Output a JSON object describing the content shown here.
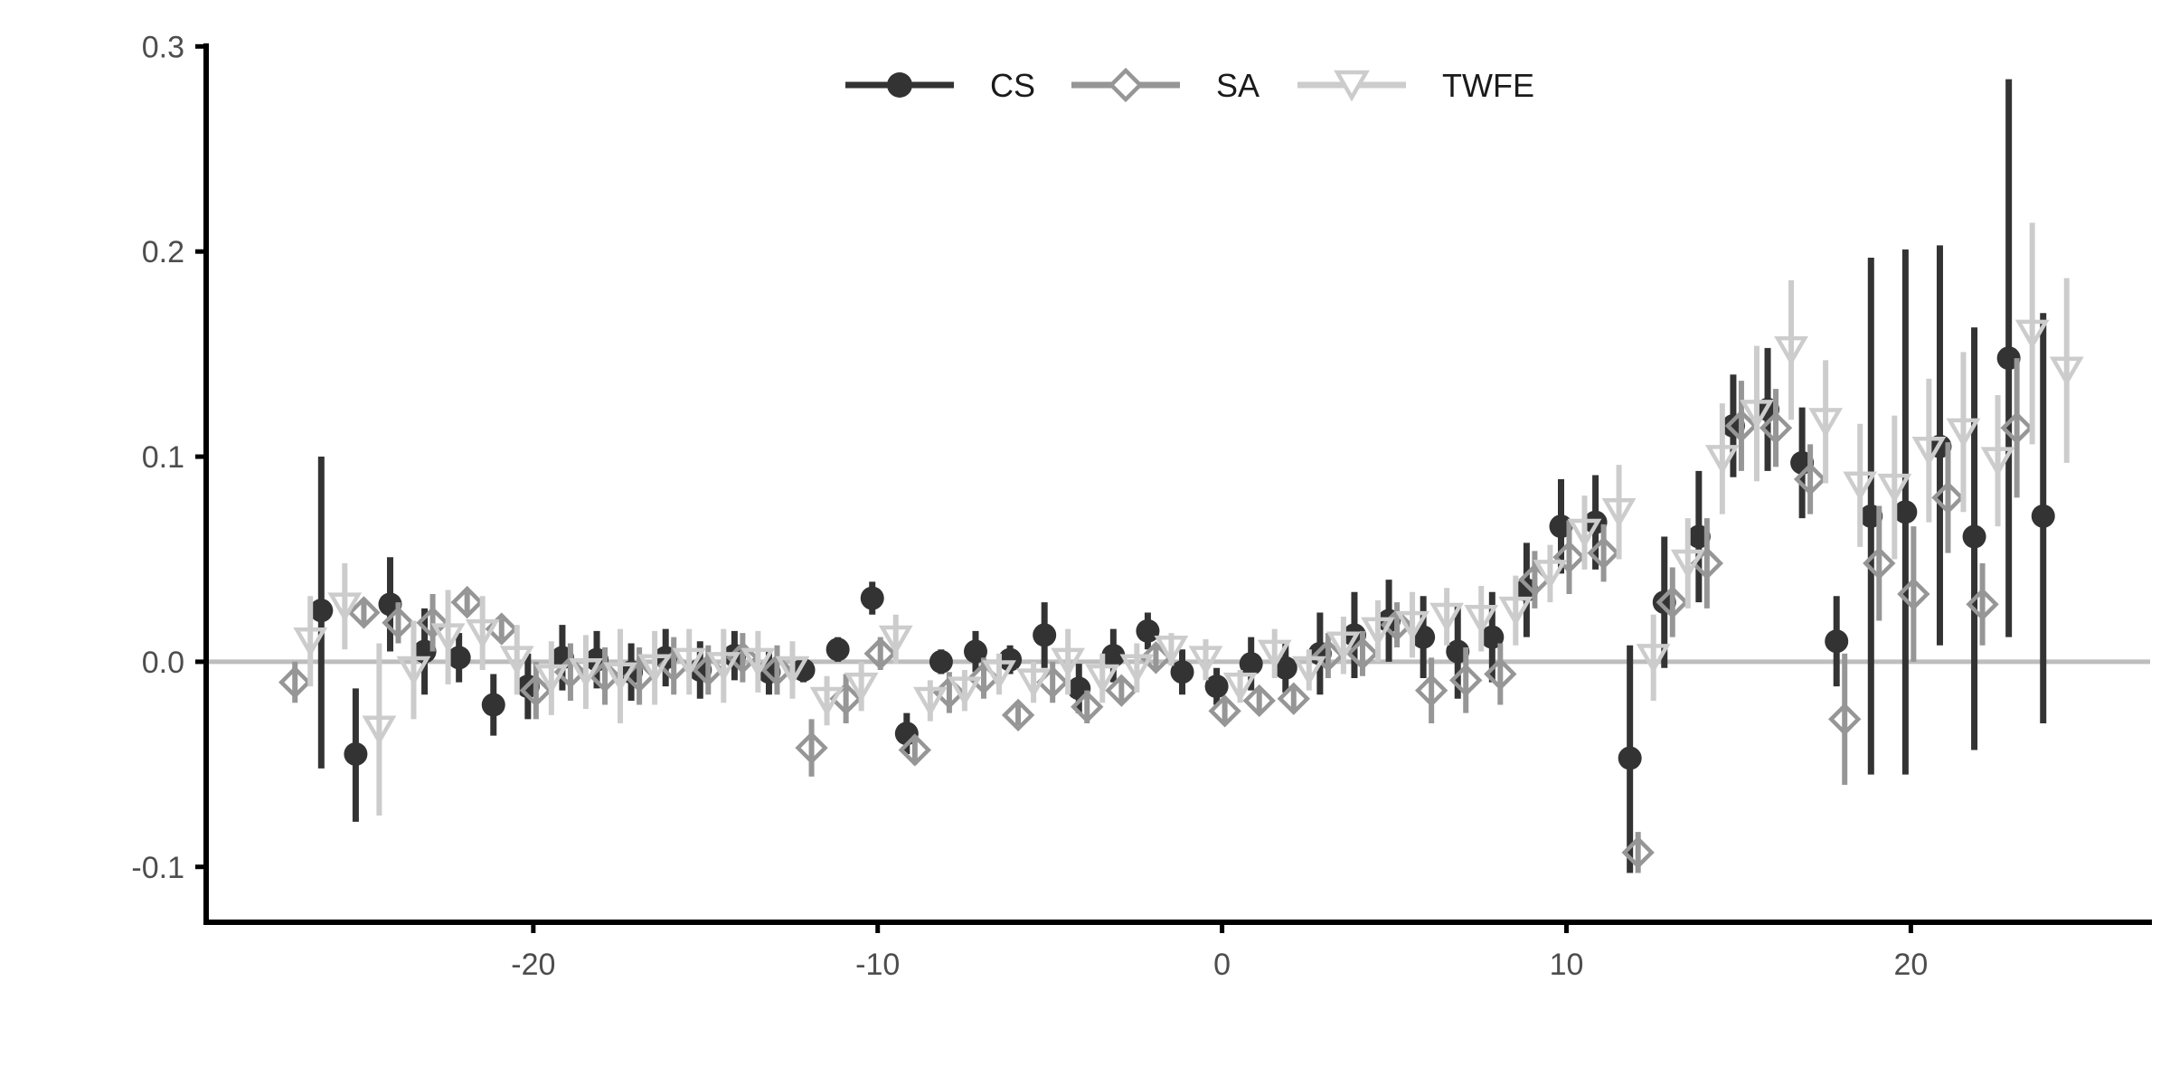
{
  "chart_data": {
    "type": "scatter",
    "title": "",
    "xlabel": "",
    "ylabel": "",
    "xlim": [
      -29.5,
      27
    ],
    "ylim": [
      -0.127,
      0.305
    ],
    "xticks": [
      -20,
      -10,
      0,
      10,
      20
    ],
    "yticks": [
      -0.1,
      0.0,
      0.1,
      0.2,
      0.3
    ],
    "xtick_labels": [
      "-20",
      "-10",
      "0",
      "10",
      "20"
    ],
    "ytick_labels": [
      "-0.1",
      "0.0",
      "0.1",
      "0.2",
      "0.3"
    ],
    "reference_line_y": 0,
    "grid": false,
    "legend_position": "top-center",
    "series": [
      {
        "name": "CS",
        "color": "#333333",
        "marker": "filled-circle",
        "points": [
          {
            "x": -26,
            "y": 0.025,
            "lo": -0.052,
            "hi": 0.1
          },
          {
            "x": -25,
            "y": -0.045,
            "lo": -0.078,
            "hi": -0.013
          },
          {
            "x": -24,
            "y": 0.028,
            "lo": 0.005,
            "hi": 0.051
          },
          {
            "x": -23,
            "y": 0.005,
            "lo": -0.016,
            "hi": 0.026
          },
          {
            "x": -22,
            "y": 0.002,
            "lo": -0.01,
            "hi": 0.014
          },
          {
            "x": -21,
            "y": -0.021,
            "lo": -0.036,
            "hi": -0.006
          },
          {
            "x": -20,
            "y": -0.012,
            "lo": -0.028,
            "hi": 0.004
          },
          {
            "x": -19,
            "y": 0.002,
            "lo": -0.014,
            "hi": 0.018
          },
          {
            "x": -18,
            "y": 0.001,
            "lo": -0.013,
            "hi": 0.015
          },
          {
            "x": -17,
            "y": -0.005,
            "lo": -0.019,
            "hi": 0.009
          },
          {
            "x": -16,
            "y": 0.002,
            "lo": -0.012,
            "hi": 0.016
          },
          {
            "x": -15,
            "y": -0.004,
            "lo": -0.018,
            "hi": 0.01
          },
          {
            "x": -14,
            "y": 0.003,
            "lo": -0.009,
            "hi": 0.015
          },
          {
            "x": -13,
            "y": -0.005,
            "lo": -0.016,
            "hi": 0.006
          },
          {
            "x": -12,
            "y": -0.004,
            "lo": -0.01,
            "hi": 0.002
          },
          {
            "x": -11,
            "y": 0.006,
            "lo": 0.0,
            "hi": 0.012
          },
          {
            "x": -10,
            "y": 0.031,
            "lo": 0.023,
            "hi": 0.039
          },
          {
            "x": -9,
            "y": -0.035,
            "lo": -0.045,
            "hi": -0.025
          },
          {
            "x": -8,
            "y": 0.0,
            "lo": -0.006,
            "hi": 0.006
          },
          {
            "x": -7,
            "y": 0.005,
            "lo": -0.005,
            "hi": 0.015
          },
          {
            "x": -6,
            "y": 0.001,
            "lo": -0.006,
            "hi": 0.008
          },
          {
            "x": -5,
            "y": 0.013,
            "lo": -0.003,
            "hi": 0.029
          },
          {
            "x": -4,
            "y": -0.013,
            "lo": -0.025,
            "hi": -0.001
          },
          {
            "x": -3,
            "y": 0.003,
            "lo": -0.01,
            "hi": 0.016
          },
          {
            "x": -2,
            "y": 0.015,
            "lo": 0.006,
            "hi": 0.024
          },
          {
            "x": -1,
            "y": -0.005,
            "lo": -0.016,
            "hi": 0.006
          },
          {
            "x": 0,
            "y": -0.012,
            "lo": -0.021,
            "hi": -0.003
          },
          {
            "x": 1,
            "y": -0.001,
            "lo": -0.014,
            "hi": 0.012
          },
          {
            "x": 2,
            "y": -0.003,
            "lo": -0.015,
            "hi": 0.009
          },
          {
            "x": 3,
            "y": 0.004,
            "lo": -0.016,
            "hi": 0.024
          },
          {
            "x": 4,
            "y": 0.013,
            "lo": -0.008,
            "hi": 0.034
          },
          {
            "x": 5,
            "y": 0.02,
            "lo": 0.0,
            "hi": 0.04
          },
          {
            "x": 6,
            "y": 0.012,
            "lo": -0.008,
            "hi": 0.032
          },
          {
            "x": 7,
            "y": 0.005,
            "lo": -0.018,
            "hi": 0.028
          },
          {
            "x": 8,
            "y": 0.012,
            "lo": -0.01,
            "hi": 0.034
          },
          {
            "x": 9,
            "y": 0.035,
            "lo": 0.012,
            "hi": 0.058
          },
          {
            "x": 10,
            "y": 0.066,
            "lo": 0.043,
            "hi": 0.089
          },
          {
            "x": 11,
            "y": 0.068,
            "lo": 0.045,
            "hi": 0.091
          },
          {
            "x": 12,
            "y": -0.047,
            "lo": -0.103,
            "hi": 0.008
          },
          {
            "x": 13,
            "y": 0.029,
            "lo": -0.003,
            "hi": 0.061
          },
          {
            "x": 14,
            "y": 0.061,
            "lo": 0.029,
            "hi": 0.093
          },
          {
            "x": 15,
            "y": 0.115,
            "lo": 0.09,
            "hi": 0.14
          },
          {
            "x": 16,
            "y": 0.123,
            "lo": 0.093,
            "hi": 0.153
          },
          {
            "x": 17,
            "y": 0.097,
            "lo": 0.07,
            "hi": 0.124
          },
          {
            "x": 18,
            "y": 0.01,
            "lo": -0.012,
            "hi": 0.032
          },
          {
            "x": 19,
            "y": 0.071,
            "lo": -0.055,
            "hi": 0.197
          },
          {
            "x": 20,
            "y": 0.073,
            "lo": -0.055,
            "hi": 0.201
          },
          {
            "x": 21,
            "y": 0.105,
            "lo": 0.008,
            "hi": 0.203
          },
          {
            "x": 22,
            "y": 0.061,
            "lo": -0.043,
            "hi": 0.163
          },
          {
            "x": 23,
            "y": 0.148,
            "lo": 0.012,
            "hi": 0.284
          },
          {
            "x": 24,
            "y": 0.071,
            "lo": -0.03,
            "hi": 0.17
          }
        ]
      },
      {
        "name": "SA",
        "color": "#969696",
        "marker": "open-diamond",
        "points": [
          {
            "x": -27,
            "y": -0.01,
            "lo": -0.02,
            "hi": 0.0
          },
          {
            "x": -25,
            "y": 0.024,
            "lo": 0.018,
            "hi": 0.03
          },
          {
            "x": -24,
            "y": 0.019,
            "lo": 0.009,
            "hi": 0.029
          },
          {
            "x": -23,
            "y": 0.019,
            "lo": 0.005,
            "hi": 0.033
          },
          {
            "x": -22,
            "y": 0.029,
            "lo": 0.024,
            "hi": 0.034
          },
          {
            "x": -21,
            "y": 0.016,
            "lo": 0.011,
            "hi": 0.021
          },
          {
            "x": -20,
            "y": -0.014,
            "lo": -0.028,
            "hi": 0.0
          },
          {
            "x": -19,
            "y": -0.005,
            "lo": -0.019,
            "hi": 0.009
          },
          {
            "x": -18,
            "y": -0.007,
            "lo": -0.021,
            "hi": 0.007
          },
          {
            "x": -17,
            "y": -0.007,
            "lo": -0.021,
            "hi": 0.007
          },
          {
            "x": -16,
            "y": -0.002,
            "lo": -0.016,
            "hi": 0.012
          },
          {
            "x": -15,
            "y": -0.004,
            "lo": -0.016,
            "hi": 0.008
          },
          {
            "x": -14,
            "y": 0.002,
            "lo": -0.01,
            "hi": 0.014
          },
          {
            "x": -13,
            "y": -0.004,
            "lo": -0.016,
            "hi": 0.008
          },
          {
            "x": -12,
            "y": -0.042,
            "lo": -0.056,
            "hi": -0.028
          },
          {
            "x": -11,
            "y": -0.018,
            "lo": -0.03,
            "hi": -0.006
          },
          {
            "x": -10,
            "y": 0.004,
            "lo": -0.004,
            "hi": 0.012
          },
          {
            "x": -9,
            "y": -0.043,
            "lo": -0.05,
            "hi": -0.036
          },
          {
            "x": -8,
            "y": -0.015,
            "lo": -0.025,
            "hi": -0.005
          },
          {
            "x": -7,
            "y": -0.008,
            "lo": -0.018,
            "hi": 0.002
          },
          {
            "x": -6,
            "y": -0.026,
            "lo": -0.031,
            "hi": -0.021
          },
          {
            "x": -5,
            "y": -0.01,
            "lo": -0.02,
            "hi": 0.0
          },
          {
            "x": -4,
            "y": -0.022,
            "lo": -0.03,
            "hi": -0.014
          },
          {
            "x": -3,
            "y": -0.014,
            "lo": -0.02,
            "hi": -0.008
          },
          {
            "x": -2,
            "y": 0.002,
            "lo": -0.004,
            "hi": 0.008
          },
          {
            "x": 0,
            "y": -0.024,
            "lo": -0.03,
            "hi": -0.018
          },
          {
            "x": 1,
            "y": -0.019,
            "lo": -0.025,
            "hi": -0.013
          },
          {
            "x": 2,
            "y": -0.018,
            "lo": -0.024,
            "hi": -0.012
          },
          {
            "x": 3,
            "y": 0.003,
            "lo": -0.008,
            "hi": 0.014
          },
          {
            "x": 4,
            "y": 0.004,
            "lo": -0.007,
            "hi": 0.015
          },
          {
            "x": 5,
            "y": 0.018,
            "lo": 0.007,
            "hi": 0.029
          },
          {
            "x": 6,
            "y": -0.014,
            "lo": -0.03,
            "hi": 0.002
          },
          {
            "x": 7,
            "y": -0.009,
            "lo": -0.025,
            "hi": 0.007
          },
          {
            "x": 8,
            "y": -0.006,
            "lo": -0.021,
            "hi": 0.009
          },
          {
            "x": 9,
            "y": 0.04,
            "lo": 0.026,
            "hi": 0.054
          },
          {
            "x": 10,
            "y": 0.051,
            "lo": 0.033,
            "hi": 0.069
          },
          {
            "x": 11,
            "y": 0.053,
            "lo": 0.039,
            "hi": 0.067
          },
          {
            "x": 12,
            "y": -0.093,
            "lo": -0.103,
            "hi": -0.083
          },
          {
            "x": 13,
            "y": 0.029,
            "lo": 0.012,
            "hi": 0.046
          },
          {
            "x": 14,
            "y": 0.048,
            "lo": 0.026,
            "hi": 0.07
          },
          {
            "x": 15,
            "y": 0.115,
            "lo": 0.093,
            "hi": 0.137
          },
          {
            "x": 16,
            "y": 0.114,
            "lo": 0.095,
            "hi": 0.133
          },
          {
            "x": 17,
            "y": 0.089,
            "lo": 0.072,
            "hi": 0.106
          },
          {
            "x": 18,
            "y": -0.028,
            "lo": -0.06,
            "hi": 0.004
          },
          {
            "x": 19,
            "y": 0.048,
            "lo": 0.02,
            "hi": 0.076
          },
          {
            "x": 20,
            "y": 0.033,
            "lo": 0.0,
            "hi": 0.066
          },
          {
            "x": 21,
            "y": 0.08,
            "lo": 0.053,
            "hi": 0.107
          },
          {
            "x": 22,
            "y": 0.028,
            "lo": 0.008,
            "hi": 0.048
          },
          {
            "x": 23,
            "y": 0.114,
            "lo": 0.08,
            "hi": 0.148
          }
        ]
      },
      {
        "name": "TWFE",
        "color": "#cccccc",
        "marker": "open-triangle-down",
        "points": [
          {
            "x": -27,
            "y": 0.01,
            "lo": -0.012,
            "hi": 0.032
          },
          {
            "x": -26,
            "y": 0.027,
            "lo": 0.006,
            "hi": 0.048
          },
          {
            "x": -25,
            "y": -0.033,
            "lo": -0.075,
            "hi": 0.009
          },
          {
            "x": -24,
            "y": -0.004,
            "lo": -0.028,
            "hi": 0.02
          },
          {
            "x": -23,
            "y": 0.012,
            "lo": -0.011,
            "hi": 0.035
          },
          {
            "x": -22,
            "y": 0.014,
            "lo": -0.004,
            "hi": 0.032
          },
          {
            "x": -21,
            "y": 0.001,
            "lo": -0.016,
            "hi": 0.018
          },
          {
            "x": -20,
            "y": -0.008,
            "lo": -0.026,
            "hi": 0.01
          },
          {
            "x": -19,
            "y": -0.005,
            "lo": -0.023,
            "hi": 0.013
          },
          {
            "x": -18,
            "y": -0.007,
            "lo": -0.03,
            "hi": 0.016
          },
          {
            "x": -17,
            "y": -0.003,
            "lo": -0.021,
            "hi": 0.015
          },
          {
            "x": -16,
            "y": 0.0,
            "lo": -0.016,
            "hi": 0.016
          },
          {
            "x": -15,
            "y": -0.002,
            "lo": -0.02,
            "hi": 0.016
          },
          {
            "x": -14,
            "y": 0.0,
            "lo": -0.015,
            "hi": 0.015
          },
          {
            "x": -13,
            "y": -0.004,
            "lo": -0.018,
            "hi": 0.01
          },
          {
            "x": -12,
            "y": -0.019,
            "lo": -0.031,
            "hi": -0.007
          },
          {
            "x": -11,
            "y": -0.012,
            "lo": -0.024,
            "hi": 0.0
          },
          {
            "x": -10,
            "y": 0.011,
            "lo": -0.001,
            "hi": 0.023
          },
          {
            "x": -9,
            "y": -0.019,
            "lo": -0.029,
            "hi": -0.009
          },
          {
            "x": -8,
            "y": -0.014,
            "lo": -0.024,
            "hi": -0.004
          },
          {
            "x": -7,
            "y": -0.006,
            "lo": -0.016,
            "hi": 0.004
          },
          {
            "x": -6,
            "y": -0.01,
            "lo": -0.02,
            "hi": 0.0
          },
          {
            "x": -5,
            "y": 0.0,
            "lo": -0.016,
            "hi": 0.016
          },
          {
            "x": -4,
            "y": -0.008,
            "lo": -0.02,
            "hi": 0.004
          },
          {
            "x": -3,
            "y": -0.003,
            "lo": -0.015,
            "hi": 0.009
          },
          {
            "x": -2,
            "y": 0.006,
            "lo": -0.002,
            "hi": 0.014
          },
          {
            "x": -1,
            "y": 0.001,
            "lo": -0.009,
            "hi": 0.011
          },
          {
            "x": 0,
            "y": -0.012,
            "lo": -0.02,
            "hi": -0.004
          },
          {
            "x": 1,
            "y": 0.004,
            "lo": -0.008,
            "hi": 0.016
          },
          {
            "x": 2,
            "y": -0.004,
            "lo": -0.014,
            "hi": 0.006
          },
          {
            "x": 3,
            "y": 0.008,
            "lo": -0.006,
            "hi": 0.022
          },
          {
            "x": 4,
            "y": 0.015,
            "lo": 0.0,
            "hi": 0.03
          },
          {
            "x": 5,
            "y": 0.018,
            "lo": 0.002,
            "hi": 0.034
          },
          {
            "x": 6,
            "y": 0.022,
            "lo": 0.008,
            "hi": 0.036
          },
          {
            "x": 7,
            "y": 0.021,
            "lo": 0.005,
            "hi": 0.037
          },
          {
            "x": 8,
            "y": 0.025,
            "lo": 0.008,
            "hi": 0.042
          },
          {
            "x": 9,
            "y": 0.043,
            "lo": 0.029,
            "hi": 0.057
          },
          {
            "x": 10,
            "y": 0.063,
            "lo": 0.045,
            "hi": 0.081
          },
          {
            "x": 11,
            "y": 0.073,
            "lo": 0.05,
            "hi": 0.096
          },
          {
            "x": 12,
            "y": 0.002,
            "lo": -0.019,
            "hi": 0.023
          },
          {
            "x": 13,
            "y": 0.048,
            "lo": 0.026,
            "hi": 0.07
          },
          {
            "x": 14,
            "y": 0.099,
            "lo": 0.072,
            "hi": 0.126
          },
          {
            "x": 15,
            "y": 0.121,
            "lo": 0.088,
            "hi": 0.154
          },
          {
            "x": 16,
            "y": 0.152,
            "lo": 0.118,
            "hi": 0.186
          },
          {
            "x": 17,
            "y": 0.117,
            "lo": 0.087,
            "hi": 0.147
          },
          {
            "x": 18,
            "y": 0.086,
            "lo": 0.056,
            "hi": 0.116
          },
          {
            "x": 19,
            "y": 0.085,
            "lo": 0.05,
            "hi": 0.12
          },
          {
            "x": 20,
            "y": 0.103,
            "lo": 0.068,
            "hi": 0.138
          },
          {
            "x": 21,
            "y": 0.112,
            "lo": 0.073,
            "hi": 0.151
          },
          {
            "x": 22,
            "y": 0.098,
            "lo": 0.066,
            "hi": 0.13
          },
          {
            "x": 23,
            "y": 0.16,
            "lo": 0.106,
            "hi": 0.214
          },
          {
            "x": 24,
            "y": 0.142,
            "lo": 0.097,
            "hi": 0.187
          }
        ]
      }
    ]
  }
}
